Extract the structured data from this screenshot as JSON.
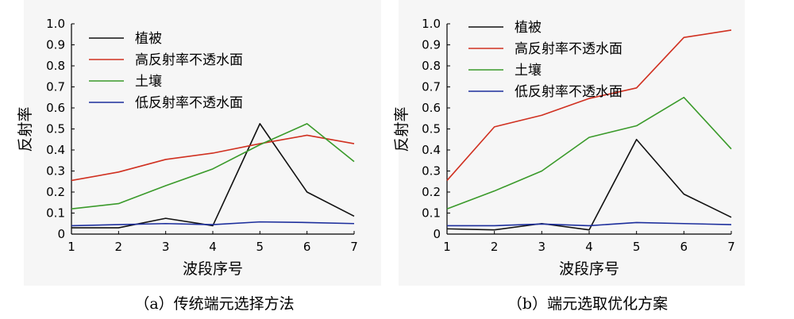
{
  "figure": {
    "captions": [
      "（a）传统端元选择方法",
      "（b）端元选取优化方案"
    ]
  },
  "chart_data": [
    {
      "type": "line",
      "title": "",
      "xlabel": "波段序号",
      "ylabel": "反射率",
      "x": [
        1,
        2,
        3,
        4,
        5,
        6,
        7
      ],
      "xlim": [
        1,
        7
      ],
      "ylim": [
        0,
        1.0
      ],
      "xticks": [
        "1",
        "2",
        "3",
        "4",
        "5",
        "6",
        "7"
      ],
      "yticks": [
        "0",
        "0.1",
        "0.2",
        "0.3",
        "0.4",
        "0.5",
        "0.6",
        "0.7",
        "0.8",
        "0.9",
        "1.0"
      ],
      "grid": false,
      "legend_position": "top-left",
      "series": [
        {
          "name": "植被",
          "color": "#111111",
          "values": [
            0.03,
            0.03,
            0.075,
            0.04,
            0.525,
            0.2,
            0.085
          ]
        },
        {
          "name": "高反射率不透水面",
          "color": "#d03020",
          "values": [
            0.255,
            0.295,
            0.355,
            0.385,
            0.43,
            0.47,
            0.43
          ]
        },
        {
          "name": "土壤",
          "color": "#3a9a2a",
          "values": [
            0.12,
            0.145,
            0.23,
            0.31,
            0.425,
            0.525,
            0.345
          ]
        },
        {
          "name": "低反射率不透水面",
          "color": "#1c2e9c",
          "values": [
            0.04,
            0.045,
            0.05,
            0.045,
            0.058,
            0.055,
            0.05
          ]
        }
      ]
    },
    {
      "type": "line",
      "title": "",
      "xlabel": "波段序号",
      "ylabel": "反射率",
      "x": [
        1,
        2,
        3,
        4,
        5,
        6,
        7
      ],
      "xlim": [
        1,
        7
      ],
      "ylim": [
        0,
        1.0
      ],
      "xticks": [
        "1",
        "2",
        "3",
        "4",
        "5",
        "6",
        "7"
      ],
      "yticks": [
        "0",
        "0.1",
        "0.2",
        "0.3",
        "0.4",
        "0.5",
        "0.6",
        "0.7",
        "0.8",
        "0.9",
        "1.0"
      ],
      "grid": false,
      "legend_position": "top-left",
      "series": [
        {
          "name": "植被",
          "color": "#111111",
          "values": [
            0.025,
            0.02,
            0.05,
            0.02,
            0.45,
            0.19,
            0.08
          ]
        },
        {
          "name": "高反射率不透水面",
          "color": "#d03020",
          "values": [
            0.255,
            0.51,
            0.565,
            0.645,
            0.695,
            0.935,
            0.97
          ]
        },
        {
          "name": "土壤",
          "color": "#3a9a2a",
          "values": [
            0.12,
            0.205,
            0.3,
            0.46,
            0.515,
            0.65,
            0.405
          ]
        },
        {
          "name": "低反射率不透水面",
          "color": "#1c2e9c",
          "values": [
            0.04,
            0.04,
            0.048,
            0.04,
            0.055,
            0.05,
            0.045
          ]
        }
      ]
    }
  ]
}
